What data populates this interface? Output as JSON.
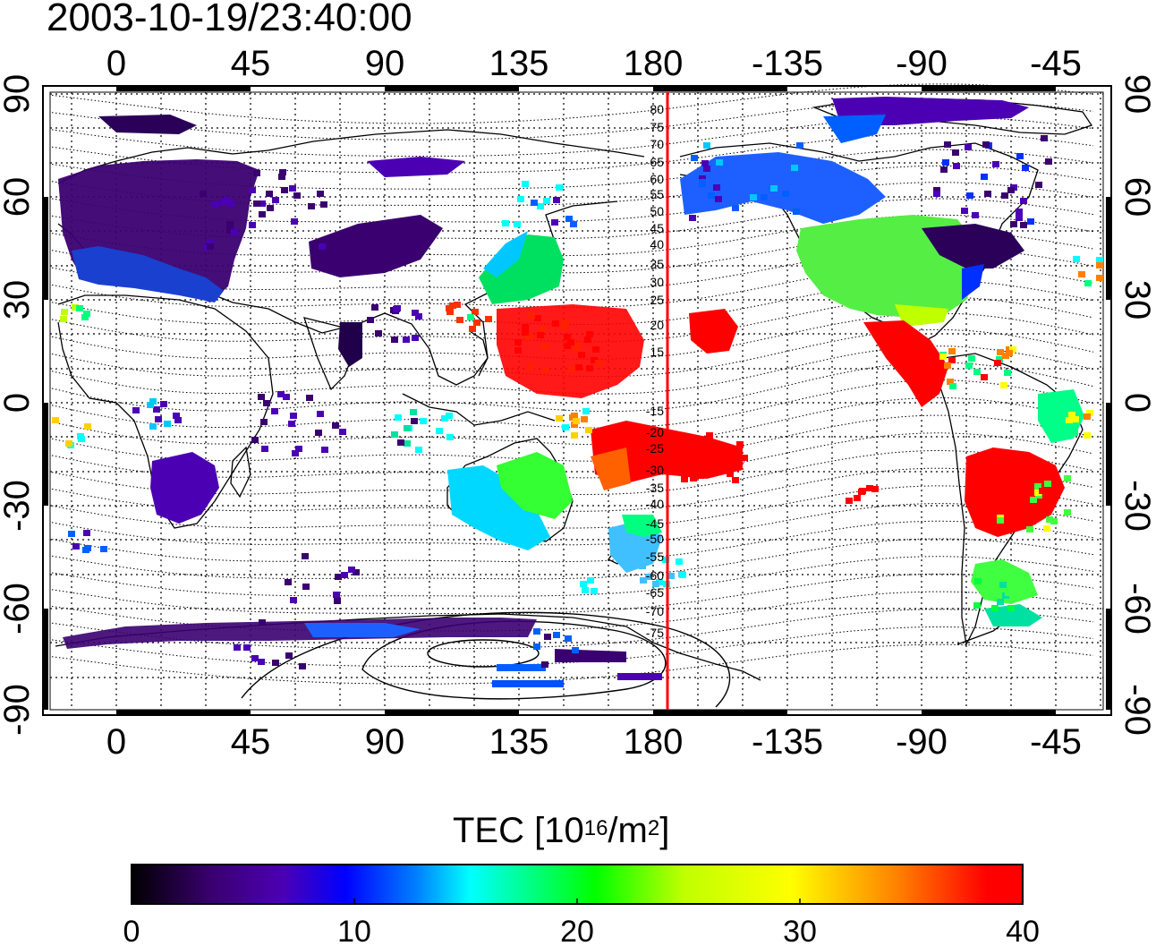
{
  "timestamp": "2003-10-19/23:40:00",
  "map": {
    "lon_ticks": [
      "0",
      "45",
      "90",
      "135",
      "180",
      "-135",
      "-90",
      "-45"
    ],
    "lat_ticks": [
      "90",
      "60",
      "30",
      "0",
      "-30",
      "-60",
      "-90"
    ],
    "meridian_line_color": "#ff0000",
    "dip_latitude_labels": [
      "80",
      "75",
      "70",
      "65",
      "60",
      "55",
      "50",
      "45",
      "40",
      "35",
      "30",
      "25",
      "20",
      "15",
      "-15",
      "-20",
      "-25",
      "-30",
      "-35",
      "-40",
      "-45",
      "-50",
      "-55",
      "-60",
      "-65",
      "-70",
      "-75"
    ]
  },
  "colorbar": {
    "title_prefix": "TEC  [10",
    "title_exp1": "16",
    "title_mid": "/m",
    "title_exp2": "2",
    "title_suffix": "]",
    "tick_labels": [
      "0",
      "10",
      "20",
      "30",
      "40"
    ],
    "min": 0,
    "max": 40,
    "colors": [
      "#000000",
      "#3a0070",
      "#4b00b4",
      "#0000ff",
      "#0080ff",
      "#00ffff",
      "#00ff80",
      "#00ff00",
      "#c0ff00",
      "#ffff00",
      "#ff8000",
      "#ff0000"
    ]
  }
}
